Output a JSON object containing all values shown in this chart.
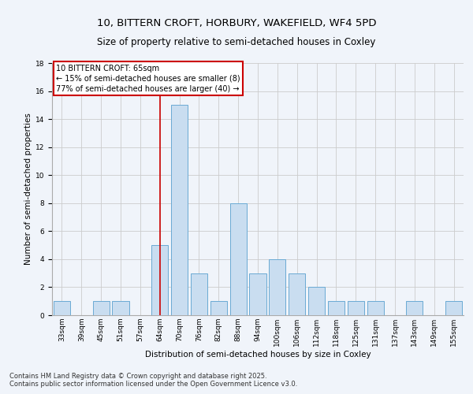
{
  "title1": "10, BITTERN CROFT, HORBURY, WAKEFIELD, WF4 5PD",
  "title2": "Size of property relative to semi-detached houses in Coxley",
  "xlabel": "Distribution of semi-detached houses by size in Coxley",
  "ylabel": "Number of semi-detached properties",
  "categories": [
    "33sqm",
    "39sqm",
    "45sqm",
    "51sqm",
    "57sqm",
    "64sqm",
    "70sqm",
    "76sqm",
    "82sqm",
    "88sqm",
    "94sqm",
    "100sqm",
    "106sqm",
    "112sqm",
    "118sqm",
    "125sqm",
    "131sqm",
    "137sqm",
    "143sqm",
    "149sqm",
    "155sqm"
  ],
  "values": [
    1,
    0,
    1,
    1,
    0,
    5,
    15,
    3,
    1,
    8,
    3,
    4,
    3,
    2,
    1,
    1,
    1,
    0,
    1,
    0,
    1
  ],
  "bar_color": "#c9ddf0",
  "bar_edge_color": "#6aaad4",
  "vline_bar_index": 5,
  "vline_color": "#cc0000",
  "annotation_text": "10 BITTERN CROFT: 65sqm\n← 15% of semi-detached houses are smaller (8)\n77% of semi-detached houses are larger (40) →",
  "annotation_box_color": "#ffffff",
  "annotation_edge_color": "#cc0000",
  "ylim": [
    0,
    18
  ],
  "yticks": [
    0,
    2,
    4,
    6,
    8,
    10,
    12,
    14,
    16,
    18
  ],
  "grid_color": "#cccccc",
  "footer_text": "Contains HM Land Registry data © Crown copyright and database right 2025.\nContains public sector information licensed under the Open Government Licence v3.0.",
  "title_fontsize": 9.5,
  "subtitle_fontsize": 8.5,
  "tick_fontsize": 6.5,
  "ylabel_fontsize": 7.5,
  "xlabel_fontsize": 7.5,
  "annotation_fontsize": 7.0,
  "footer_fontsize": 6.0,
  "bg_color": "#f0f4fa"
}
